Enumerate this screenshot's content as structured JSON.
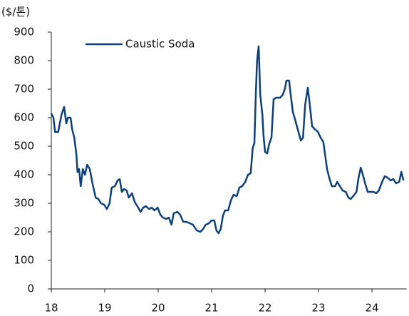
{
  "chart_data": {
    "type": "line",
    "y_label": "($/톤)",
    "xlim": [
      18,
      24.65
    ],
    "xticks": [
      18,
      19,
      20,
      21,
      22,
      23,
      24
    ],
    "ylim": [
      0,
      900
    ],
    "yticks": [
      0,
      100,
      200,
      300,
      400,
      500,
      600,
      700,
      800,
      900
    ],
    "grid": false,
    "legend": "top-left",
    "x": [
      18.0,
      18.04,
      18.07,
      18.13,
      18.19,
      18.24,
      18.28,
      18.31,
      18.36,
      18.39,
      18.43,
      18.47,
      18.49,
      18.52,
      18.55,
      18.59,
      18.63,
      18.67,
      18.72,
      18.77,
      18.83,
      18.88,
      18.93,
      18.99,
      19.04,
      19.09,
      19.13,
      19.19,
      19.24,
      19.28,
      19.32,
      19.36,
      19.41,
      19.45,
      19.51,
      19.56,
      19.61,
      19.67,
      19.72,
      19.77,
      19.83,
      19.88,
      19.93,
      19.99,
      20.04,
      20.09,
      20.15,
      20.2,
      20.25,
      20.29,
      20.36,
      20.41,
      20.47,
      20.53,
      20.59,
      20.65,
      20.72,
      20.79,
      20.84,
      20.89,
      20.95,
      21.0,
      21.05,
      21.09,
      21.13,
      21.17,
      21.21,
      21.25,
      21.31,
      21.36,
      21.41,
      21.47,
      21.52,
      21.57,
      21.63,
      21.68,
      21.73,
      21.77,
      21.8,
      21.83,
      21.85,
      21.88,
      21.91,
      21.95,
      21.97,
      22.0,
      22.04,
      22.08,
      22.12,
      22.16,
      22.21,
      22.28,
      22.33,
      22.37,
      22.4,
      22.45,
      22.48,
      22.52,
      22.56,
      22.61,
      22.67,
      22.71,
      22.75,
      22.8,
      22.84,
      22.88,
      22.93,
      22.99,
      23.04,
      23.09,
      23.12,
      23.16,
      23.2,
      23.25,
      23.31,
      23.35,
      23.4,
      23.45,
      23.51,
      23.56,
      23.6,
      23.65,
      23.71,
      23.75,
      23.79,
      23.83,
      23.88,
      23.92,
      23.97,
      24.03,
      24.08,
      24.13,
      24.19,
      24.24,
      24.29,
      24.35,
      24.4,
      24.45,
      24.51,
      24.55,
      24.59
    ],
    "series": [
      {
        "name": "Caustic Soda",
        "color": "#0d3f7a",
        "values": [
          615,
          600,
          550,
          550,
          610,
          638,
          580,
          600,
          600,
          560,
          530,
          470,
          410,
          420,
          360,
          420,
          400,
          435,
          420,
          370,
          320,
          315,
          300,
          295,
          280,
          300,
          355,
          360,
          380,
          385,
          340,
          350,
          345,
          320,
          335,
          305,
          290,
          270,
          285,
          290,
          280,
          285,
          275,
          285,
          260,
          250,
          245,
          250,
          225,
          265,
          270,
          260,
          235,
          235,
          230,
          225,
          205,
          200,
          210,
          225,
          230,
          240,
          240,
          205,
          195,
          210,
          255,
          275,
          275,
          310,
          330,
          325,
          355,
          360,
          375,
          400,
          405,
          495,
          510,
          700,
          800,
          850,
          680,
          610,
          540,
          480,
          475,
          510,
          530,
          665,
          670,
          670,
          680,
          700,
          730,
          730,
          680,
          620,
          595,
          560,
          520,
          530,
          645,
          705,
          640,
          570,
          560,
          550,
          530,
          515,
          475,
          420,
          390,
          360,
          360,
          375,
          360,
          345,
          340,
          320,
          315,
          325,
          340,
          390,
          425,
          400,
          365,
          340,
          340,
          340,
          335,
          345,
          375,
          395,
          390,
          380,
          385,
          370,
          375,
          410,
          380
        ]
      }
    ]
  }
}
